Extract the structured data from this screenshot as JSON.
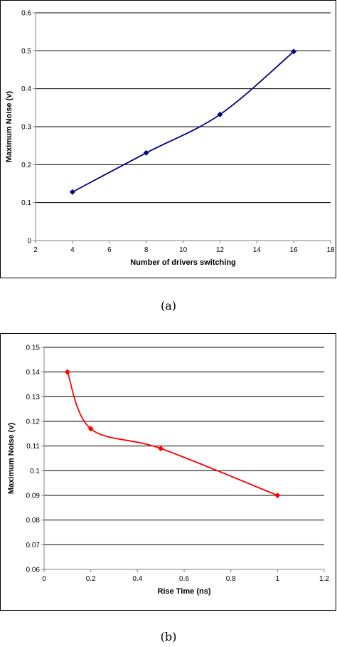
{
  "chart_data": [
    {
      "type": "line",
      "title": "",
      "xlabel": "Number of drivers switching",
      "ylabel": "Maximum Noise (v)",
      "xlim": [
        2,
        18
      ],
      "ylim": [
        0,
        0.6
      ],
      "xticks": [
        2,
        4,
        6,
        8,
        10,
        12,
        14,
        16,
        18
      ],
      "yticks": [
        0,
        0.1,
        0.2,
        0.3,
        0.4,
        0.5,
        0.6
      ],
      "xtick_labels": [
        "2",
        "4",
        "6",
        "8",
        "10",
        "12",
        "14",
        "16",
        "18"
      ],
      "ytick_labels": [
        "0",
        "0.1",
        "0.2",
        "0.3",
        "0.4",
        "0.5",
        "0.6"
      ],
      "grid": "horizontal",
      "legend": "none",
      "series": [
        {
          "x": [
            4,
            8,
            12,
            16
          ],
          "values": [
            0.128,
            0.231,
            0.332,
            0.498
          ],
          "color": "#000080",
          "marker": "diamond"
        }
      ],
      "caption": "(a)"
    },
    {
      "type": "line",
      "title": "",
      "xlabel": "Rise Time (ns)",
      "ylabel": "Maximum Noise (v)",
      "xlim": [
        0,
        1.2
      ],
      "ylim": [
        0.06,
        0.15
      ],
      "xticks": [
        0,
        0.2,
        0.4,
        0.6,
        0.8,
        1,
        1.2
      ],
      "yticks": [
        0.06,
        0.07,
        0.08,
        0.09,
        0.1,
        0.11,
        0.12,
        0.13,
        0.14,
        0.15
      ],
      "xtick_labels": [
        "0",
        "0.2",
        "0.4",
        "0.6",
        "0.8",
        "1",
        "1.2"
      ],
      "ytick_labels": [
        "0.06",
        "0.07",
        "0.08",
        "0.09",
        "0.1",
        "0.11",
        "0.12",
        "0.13",
        "0.14",
        "0.15"
      ],
      "grid": "horizontal",
      "legend": "none",
      "series": [
        {
          "x": [
            0.1,
            0.2,
            0.5,
            1.0
          ],
          "values": [
            0.14,
            0.117,
            0.109,
            0.09
          ],
          "color": "#ff0000",
          "marker": "diamond"
        }
      ],
      "caption": "(b)"
    }
  ]
}
